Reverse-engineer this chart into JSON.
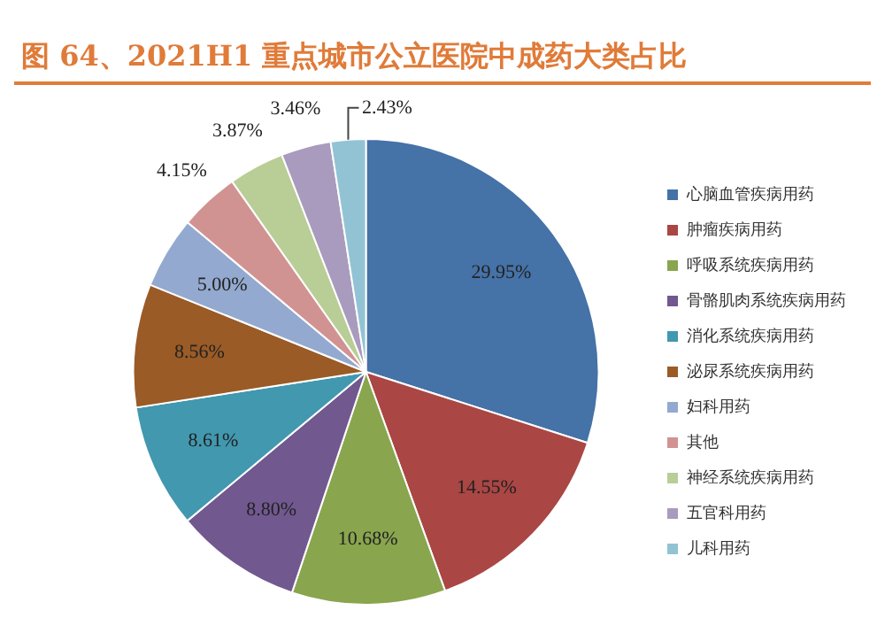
{
  "chart_data": {
    "type": "pie",
    "title": "图 64、2021H1 重点城市公立医院中成药大类占比",
    "categories": [
      "心脑血管疾病用药",
      "肿瘤疾病用药",
      "呼吸系统疾病用药",
      "骨骼肌肉系统疾病用药",
      "消化系统疾病用药",
      "泌尿系统疾病用药",
      "妇科用药",
      "其他",
      "神经系统疾病用药",
      "五官科用药",
      "儿科用药"
    ],
    "values": [
      29.95,
      14.55,
      10.68,
      8.8,
      8.61,
      8.56,
      5.0,
      4.15,
      3.87,
      3.46,
      2.43
    ],
    "value_labels": [
      "29.95%",
      "14.55%",
      "10.68%",
      "8.80%",
      "8.61%",
      "8.56%",
      "5.00%",
      "4.15%",
      "3.87%",
      "3.46%",
      "2.43%"
    ],
    "colors": [
      "#4572a7",
      "#aa4643",
      "#89a54e",
      "#71588f",
      "#4198af",
      "#9a5b26",
      "#93a9cf",
      "#d19392",
      "#b9cd96",
      "#a99bbd",
      "#92c3d4"
    ],
    "legend": "right"
  }
}
